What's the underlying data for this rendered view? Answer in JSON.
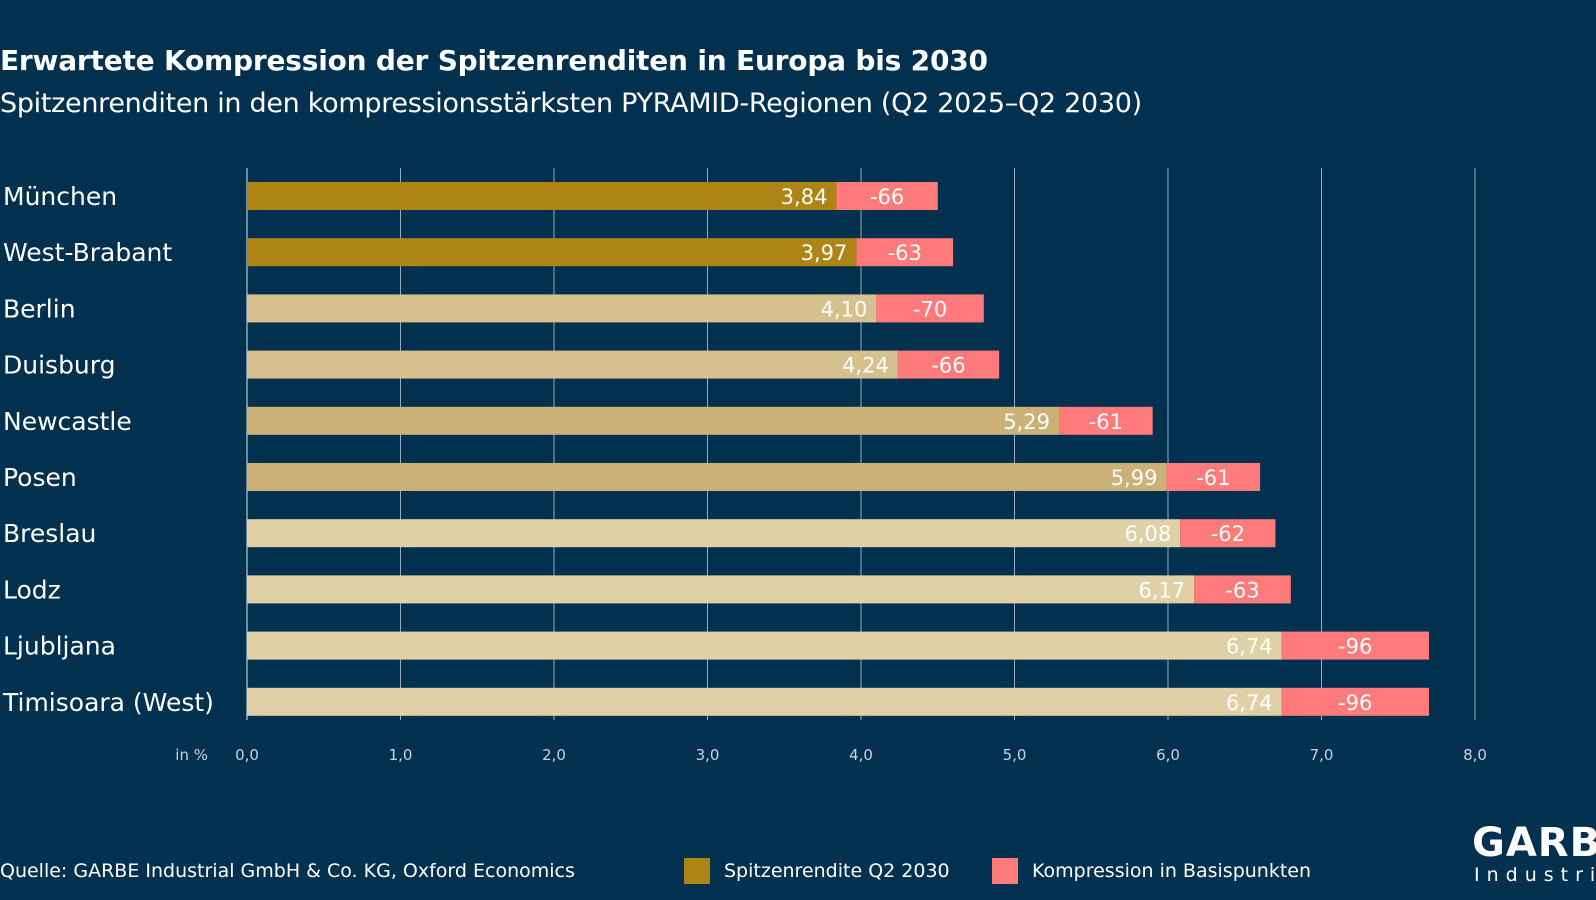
{
  "header": {
    "title": "Erwartete Kompression der Spitzenrenditen in Europa bis 2030",
    "subtitle": "Spitzenrenditen in den kompressionsstärksten PYRAMID-Regionen (Q2 2025–Q2 2030)"
  },
  "chart_data": {
    "type": "bar",
    "orientation": "horizontal",
    "stacked": true,
    "categories": [
      "München",
      "West-Brabant",
      "Berlin",
      "Duisburg",
      "Newcastle",
      "Posen",
      "Breslau",
      "Lodz",
      "Ljubljana",
      "Timisoara (West)"
    ],
    "series": [
      {
        "name": "Spitzenrendite Q2 2030",
        "values": [
          3.84,
          3.97,
          4.1,
          4.24,
          5.29,
          5.99,
          6.08,
          6.17,
          6.74,
          6.74
        ],
        "labels": [
          "3,84",
          "3,97",
          "4,10",
          "4,24",
          "5,29",
          "5,99",
          "6,08",
          "6,17",
          "6,74",
          "6,74"
        ]
      },
      {
        "name": "Kompression in Basispunkten",
        "values": [
          0.66,
          0.63,
          0.7,
          0.66,
          0.61,
          0.61,
          0.62,
          0.63,
          0.96,
          0.96
        ],
        "labels": [
          "-66",
          "-63",
          "-70",
          "-66",
          "-61",
          "-61",
          "-62",
          "-63",
          "-96",
          "-96"
        ]
      }
    ],
    "bar_colors": [
      "#ae8514",
      "#ae8514",
      "#d6c08d",
      "#d6c08d",
      "#cbb176",
      "#cbb176",
      "#dfd0a6",
      "#dfd0a6",
      "#dfd0a6",
      "#dfd0a6"
    ],
    "compression_color": "#ff7b7b",
    "legend_color": "#ae8514",
    "x_unit_label": "in %",
    "xlim": [
      0,
      8
    ],
    "x_ticks": [
      0,
      1,
      2,
      3,
      4,
      5,
      6,
      7,
      8
    ],
    "x_tick_labels": [
      "0,0",
      "1,0",
      "2,0",
      "3,0",
      "4,0",
      "5,0",
      "6,0",
      "7,0",
      "8,0"
    ],
    "grid": true,
    "legend_position": "bottom"
  },
  "footer": {
    "source": "Quelle: GARBE Industrial GmbH & Co. KG, Oxford Economics"
  },
  "logo": {
    "main": "GARBE",
    "sub": "Industrial"
  },
  "colors": {
    "background": "#02304f",
    "grid": "#c9d3dc"
  }
}
